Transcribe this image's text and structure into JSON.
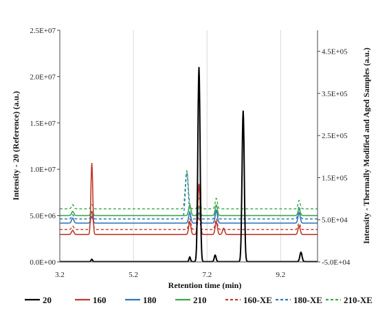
{
  "chart_data": {
    "type": "line",
    "xlabel": "Retention time (min)",
    "ylabel_left": "Intensity - 20 (Reference) (a.u.)",
    "ylabel_right": "Intensity - Thermally Modified and Aged Samples (a.u.)",
    "xlim": [
      3.2,
      10.2
    ],
    "ylim_left": [
      0,
      25000000
    ],
    "ylim_right": [
      -50000,
      500000
    ],
    "x_ticks": [
      "3.2",
      "5.2",
      "7.2",
      "9.2"
    ],
    "y_left_ticks": [
      "0.0E+00",
      "5.0E+06",
      "1.0E+07",
      "1.5E+07",
      "2.0E+07",
      "2.5E+07"
    ],
    "y_right_ticks": [
      "-5.0E+04",
      "5.0E+04",
      "1.5E+05",
      "2.5E+05",
      "3.5E+05",
      "4.5E+05"
    ],
    "grid": "vertical",
    "legend_position": "bottom",
    "series": [
      {
        "name": "20",
        "color": "#000000",
        "dash": "solid",
        "axis": "left",
        "baseline": 30000,
        "peaks": [
          [
            4.07,
            250000,
            0.02
          ],
          [
            6.73,
            500000,
            0.02
          ],
          [
            6.98,
            21000000,
            0.03
          ],
          [
            7.42,
            700000,
            0.025
          ],
          [
            8.18,
            16300000,
            0.03
          ],
          [
            9.75,
            1000000,
            0.03
          ]
        ]
      },
      {
        "name": "160",
        "color": "#c0392b",
        "dash": "solid",
        "axis": "right",
        "baseline": 15000,
        "peaks": [
          [
            3.55,
            10000,
            0.03
          ],
          [
            4.07,
            170000,
            0.025
          ],
          [
            6.73,
            30000,
            0.03
          ],
          [
            6.98,
            120000,
            0.03
          ],
          [
            7.45,
            30000,
            0.03
          ],
          [
            7.65,
            15000,
            0.03
          ],
          [
            9.7,
            20000,
            0.03
          ]
        ]
      },
      {
        "name": "180",
        "color": "#2e75b6",
        "dash": "solid",
        "axis": "right",
        "baseline": 42000,
        "peaks": [
          [
            3.55,
            12000,
            0.03
          ],
          [
            4.07,
            15000,
            0.03
          ],
          [
            6.73,
            25000,
            0.03
          ],
          [
            6.98,
            25000,
            0.03
          ],
          [
            7.45,
            30000,
            0.03
          ],
          [
            9.7,
            25000,
            0.03
          ]
        ]
      },
      {
        "name": "210",
        "color": "#3aa64a",
        "dash": "solid",
        "axis": "right",
        "baseline": 60000,
        "peaks": [
          [
            3.55,
            10000,
            0.03
          ],
          [
            4.07,
            10000,
            0.03
          ],
          [
            6.73,
            25000,
            0.03
          ],
          [
            6.98,
            20000,
            0.03
          ],
          [
            7.45,
            25000,
            0.03
          ],
          [
            9.7,
            15000,
            0.03
          ]
        ]
      },
      {
        "name": "160-XE",
        "color": "#c0392b",
        "dash": "dashed",
        "axis": "right",
        "baseline": 27000,
        "peaks": [
          [
            3.55,
            8000,
            0.03
          ],
          [
            4.07,
            40000,
            0.03
          ],
          [
            6.73,
            25000,
            0.03
          ],
          [
            6.98,
            30000,
            0.03
          ],
          [
            7.45,
            25000,
            0.03
          ],
          [
            9.7,
            15000,
            0.03
          ]
        ]
      },
      {
        "name": "180-XE",
        "color": "#2e75b6",
        "dash": "dashed",
        "axis": "right",
        "baseline": 52000,
        "peaks": [
          [
            3.55,
            10000,
            0.03
          ],
          [
            4.07,
            10000,
            0.03
          ],
          [
            6.65,
            110000,
            0.04
          ],
          [
            6.98,
            30000,
            0.03
          ],
          [
            7.45,
            20000,
            0.03
          ],
          [
            9.7,
            30000,
            0.03
          ]
        ]
      },
      {
        "name": "210-XE",
        "color": "#3aa64a",
        "dash": "dashed",
        "axis": "right",
        "baseline": 76000,
        "peaks": [
          [
            3.55,
            10000,
            0.03
          ],
          [
            4.07,
            10000,
            0.03
          ],
          [
            6.65,
            90000,
            0.04
          ],
          [
            6.98,
            25000,
            0.03
          ],
          [
            7.45,
            25000,
            0.03
          ],
          [
            9.7,
            20000,
            0.03
          ]
        ]
      }
    ]
  }
}
